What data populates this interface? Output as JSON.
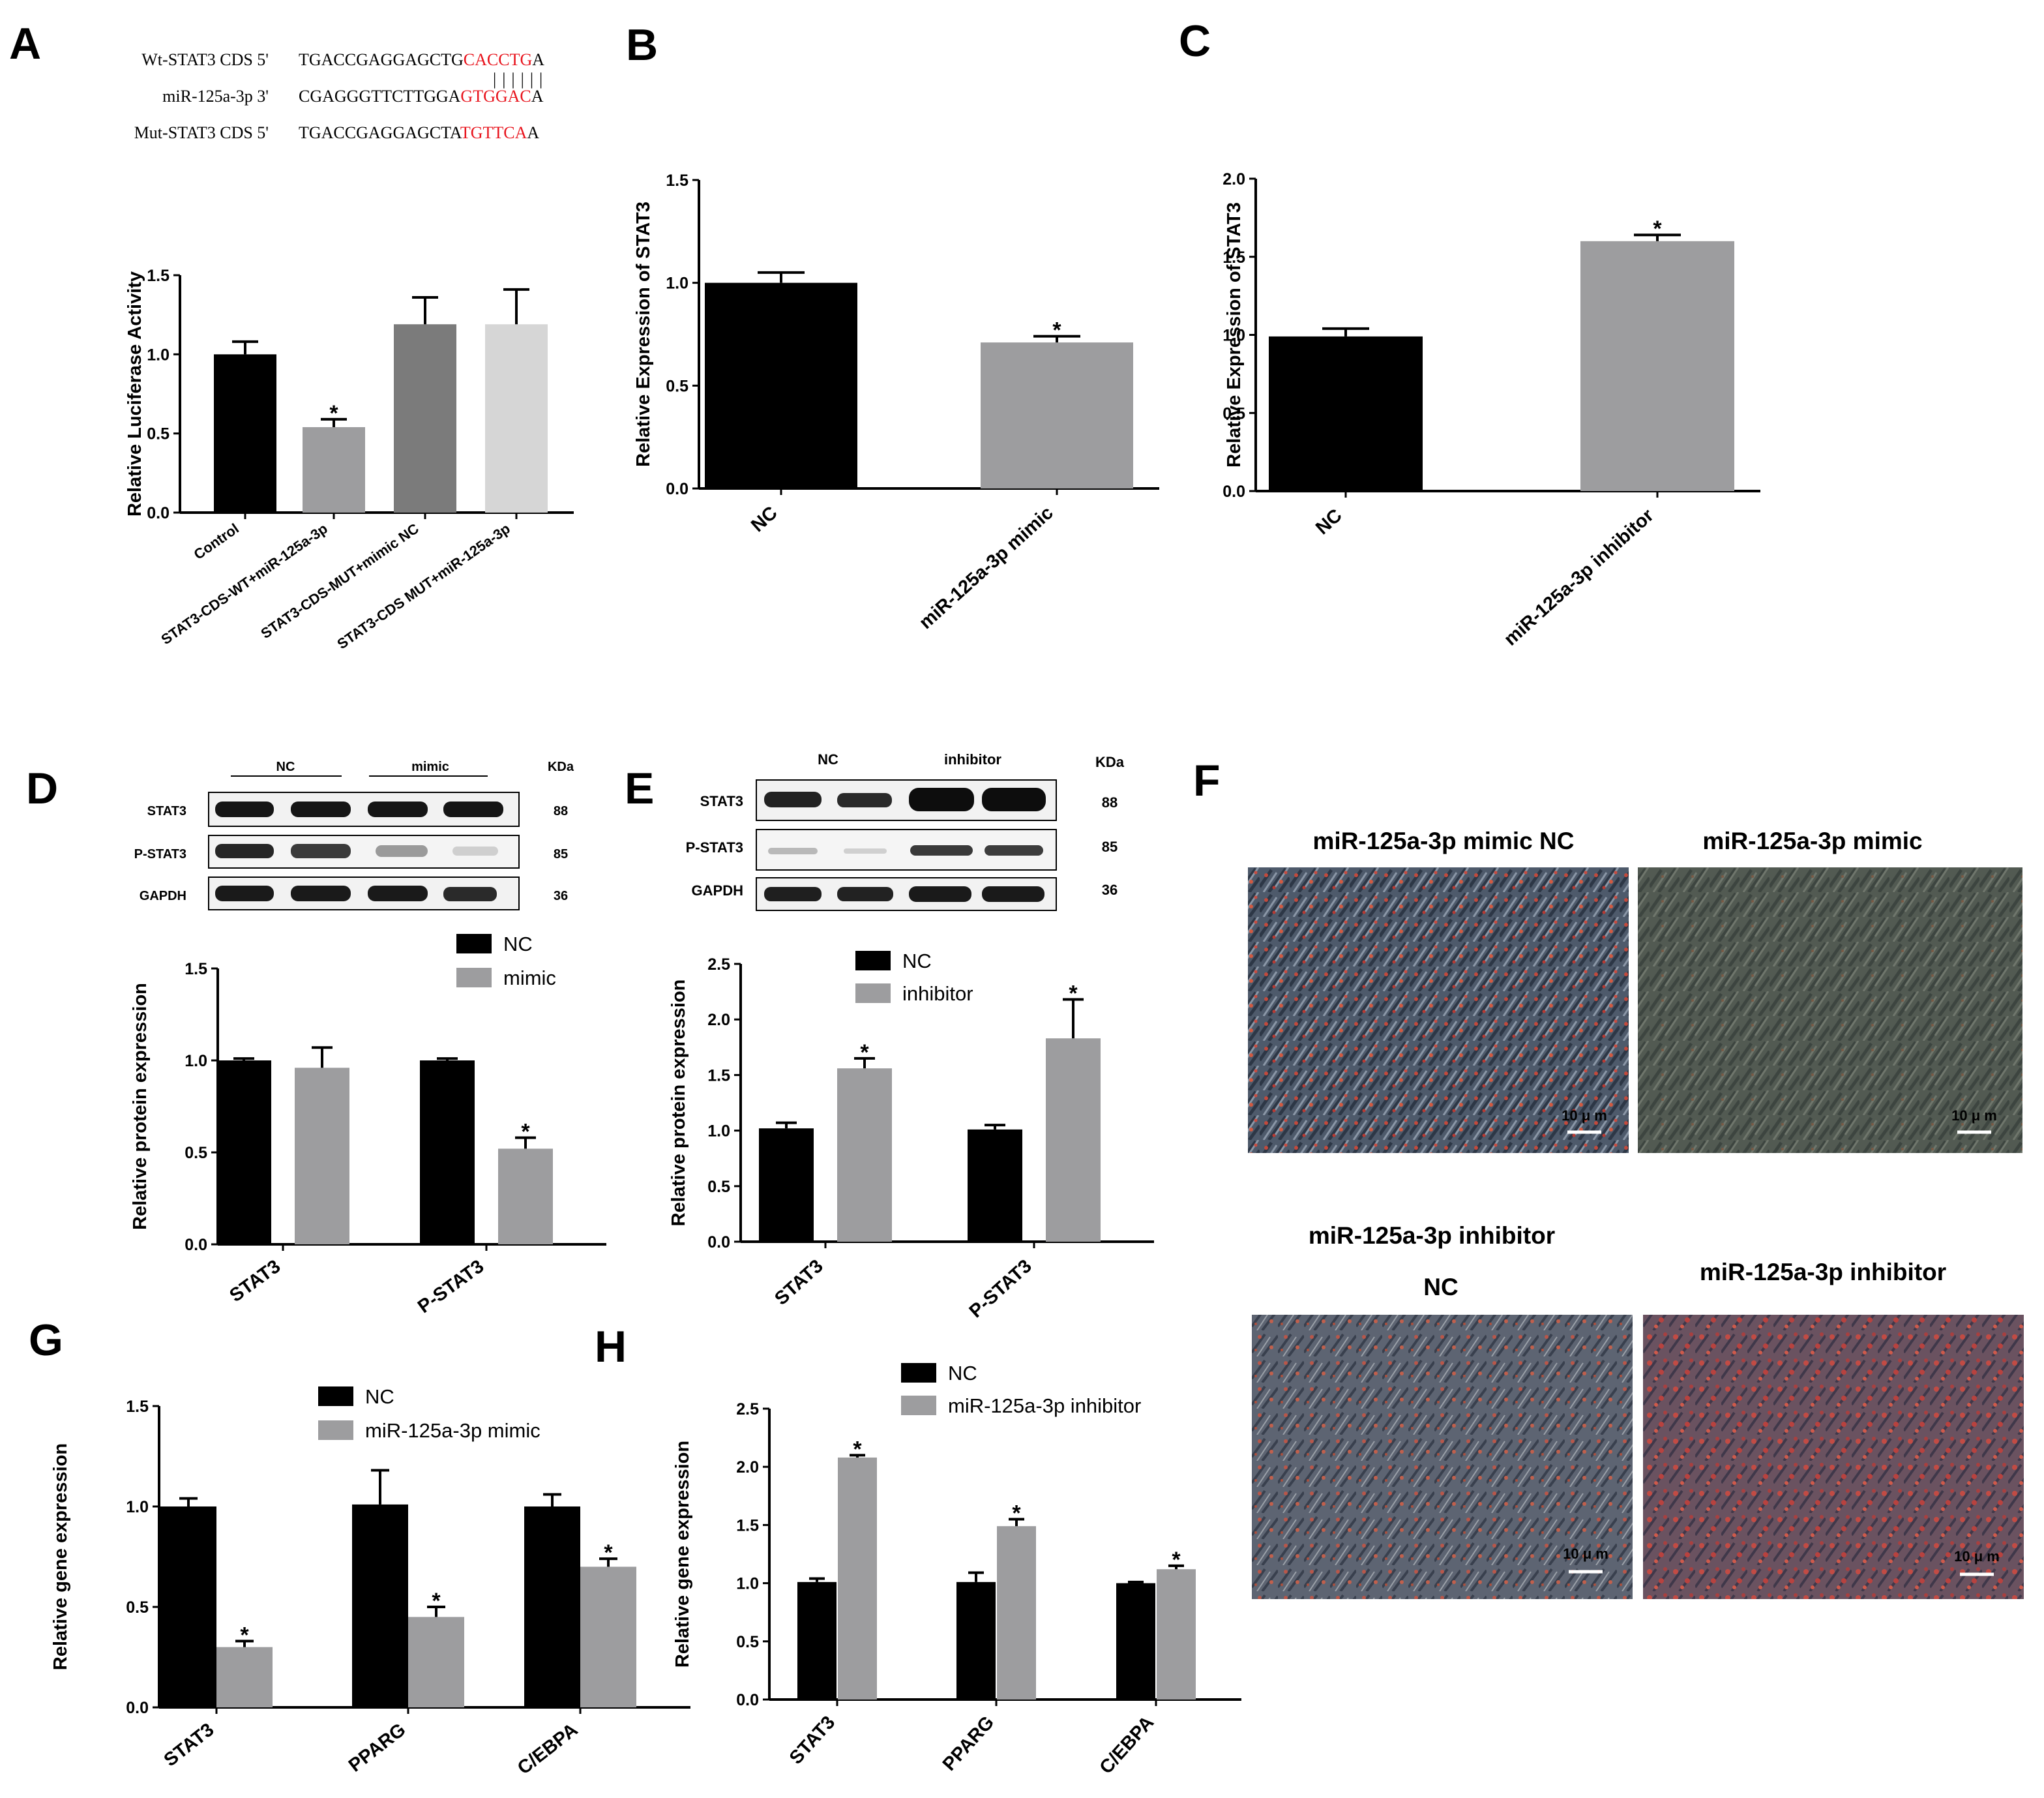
{
  "panel_letters": [
    "A",
    "B",
    "C",
    "D",
    "E",
    "F",
    "G",
    "H"
  ],
  "sequences": {
    "wt": {
      "label": "Wt-STAT3 CDS  5'",
      "prefix": "TGACCGAGGAGCTG",
      "highlight": "CACCTG",
      "suffix": "A"
    },
    "mir": {
      "label": "miR-125a-3p  3'",
      "prefix": "CGAGGGTTCTTGGA",
      "highlight": "GTGGAC",
      "suffix": "A"
    },
    "mut": {
      "label": "Mut-STAT3 CDS  5'",
      "prefix": "TGACCGAGGAGCTA",
      "highlight": "TGTTCA",
      "suffix": "A"
    },
    "pairing": "||||||",
    "highlight_color": "#e8141d"
  },
  "western_D": {
    "groups": [
      "NC",
      "mimic"
    ],
    "unit": "KDa",
    "rows": [
      {
        "label": "STAT3",
        "kda": "88"
      },
      {
        "label": "P-STAT3",
        "kda": "85"
      },
      {
        "label": "GAPDH",
        "kda": "36"
      }
    ]
  },
  "western_E": {
    "groups": [
      "NC",
      "inhibitor"
    ],
    "unit": "KDa",
    "rows": [
      {
        "label": "STAT3",
        "kda": "88"
      },
      {
        "label": "P-STAT3",
        "kda": "85"
      },
      {
        "label": "GAPDH",
        "kda": "36"
      }
    ]
  },
  "micrographs": {
    "titles": [
      "miR-125a-3p  mimic  NC",
      "miR-125a-3p  mimic",
      "miR-125a-3p  inhibitor",
      "NC",
      "miR-125a-3p  inhibitor"
    ],
    "scale_bar": "10 μ m"
  },
  "colors": {
    "black": "#000000",
    "gray": "#9d9d9f",
    "darkgray": "#7b7b7b",
    "lightgray": "#d6d6d6",
    "red": "#e8141d"
  },
  "chart_data": [
    {
      "panel": "A",
      "type": "bar",
      "title": "",
      "ylabel": "Relative Luciferase Activity",
      "xlabel": "",
      "ylim": [
        0,
        1.5
      ],
      "yticks": [
        "0.0",
        "0.5",
        "1.0",
        "1.5"
      ],
      "categories": [
        "Control",
        "STAT3-CDS-WT+miR-125a-3p",
        "STAT3-CDS-MUT+mimic NC",
        "STAT3-CDS MUT+miR-125a-3p"
      ],
      "values": [
        1.0,
        0.54,
        1.19,
        1.19
      ],
      "errors": [
        0.08,
        0.05,
        0.17,
        0.22
      ],
      "significant": [
        false,
        true,
        false,
        false
      ],
      "bar_colors": [
        "#000000",
        "#9d9d9f",
        "#7b7b7b",
        "#d6d6d6"
      ]
    },
    {
      "panel": "B",
      "type": "bar",
      "title": "",
      "ylabel": "Relative Expression of STAT3",
      "xlabel": "",
      "ylim": [
        0,
        1.5
      ],
      "yticks": [
        "0.0",
        "0.5",
        "1.0",
        "1.5"
      ],
      "categories": [
        "NC",
        "miR-125a-3p mimic"
      ],
      "values": [
        1.0,
        0.71
      ],
      "errors": [
        0.05,
        0.03
      ],
      "significant": [
        false,
        true
      ],
      "bar_colors": [
        "#000000",
        "#9d9d9f"
      ]
    },
    {
      "panel": "C",
      "type": "bar",
      "title": "",
      "ylabel": "Relative Expression of STAT3",
      "xlabel": "",
      "ylim": [
        0,
        2.0
      ],
      "yticks": [
        "0.0",
        "0.5",
        "1.0",
        "1.5",
        "2.0"
      ],
      "categories": [
        "NC",
        "miR-125a-3p inhibitor"
      ],
      "values": [
        0.99,
        1.6
      ],
      "errors": [
        0.05,
        0.04
      ],
      "significant": [
        false,
        true
      ],
      "bar_colors": [
        "#000000",
        "#9d9d9f"
      ]
    },
    {
      "panel": "D",
      "type": "bar",
      "title": "",
      "ylabel": "Relative protein expression",
      "xlabel": "",
      "ylim": [
        0,
        1.5
      ],
      "yticks": [
        "0.0",
        "0.5",
        "1.0",
        "1.5"
      ],
      "categories": [
        "STAT3",
        "P-STAT3"
      ],
      "series": [
        {
          "name": "NC",
          "values": [
            1.0,
            1.0
          ],
          "errors": [
            0.01,
            0.01
          ],
          "significant": [
            false,
            false
          ],
          "color": "#000000"
        },
        {
          "name": "mimic",
          "values": [
            0.96,
            0.52
          ],
          "errors": [
            0.11,
            0.06
          ],
          "significant": [
            false,
            true
          ],
          "color": "#9d9d9f"
        }
      ],
      "legend": "top"
    },
    {
      "panel": "E",
      "type": "bar",
      "title": "",
      "ylabel": "Relative protein expression",
      "xlabel": "",
      "ylim": [
        0,
        2.5
      ],
      "yticks": [
        "0.0",
        "0.5",
        "1.0",
        "1.5",
        "2.0",
        "2.5"
      ],
      "categories": [
        "STAT3",
        "P-STAT3"
      ],
      "series": [
        {
          "name": "NC",
          "values": [
            1.02,
            1.01
          ],
          "errors": [
            0.05,
            0.04
          ],
          "significant": [
            false,
            false
          ],
          "color": "#000000"
        },
        {
          "name": "inhibitor",
          "values": [
            1.56,
            1.83
          ],
          "errors": [
            0.09,
            0.35
          ],
          "significant": [
            true,
            true
          ],
          "color": "#9d9d9f"
        }
      ],
      "legend": "top"
    },
    {
      "panel": "G",
      "type": "bar",
      "title": "",
      "ylabel": "Relative gene expression",
      "xlabel": "",
      "ylim": [
        0,
        1.5
      ],
      "yticks": [
        "0.0",
        "0.5",
        "1.0",
        "1.5"
      ],
      "categories": [
        "STAT3",
        "PPARG",
        "C/EBPA"
      ],
      "series": [
        {
          "name": "NC",
          "values": [
            1.0,
            1.01,
            1.0
          ],
          "errors": [
            0.04,
            0.17,
            0.06
          ],
          "significant": [
            false,
            false,
            false
          ],
          "color": "#000000"
        },
        {
          "name": "miR-125a-3p mimic",
          "values": [
            0.3,
            0.45,
            0.7
          ],
          "errors": [
            0.03,
            0.05,
            0.04
          ],
          "significant": [
            true,
            true,
            true
          ],
          "color": "#9d9d9f"
        }
      ],
      "legend": "top"
    },
    {
      "panel": "H",
      "type": "bar",
      "title": "",
      "ylabel": "Relative gene expression",
      "xlabel": "",
      "ylim": [
        0,
        2.5
      ],
      "yticks": [
        "0.0",
        "0.5",
        "1.0",
        "1.5",
        "2.0",
        "2.5"
      ],
      "categories": [
        "STAT3",
        "PPARG",
        "C/EBPA"
      ],
      "series": [
        {
          "name": "NC",
          "values": [
            1.01,
            1.01,
            1.0
          ],
          "errors": [
            0.03,
            0.08,
            0.01
          ],
          "significant": [
            false,
            false,
            false
          ],
          "color": "#000000"
        },
        {
          "name": "miR-125a-3p inhibitor",
          "values": [
            2.08,
            1.49,
            1.12
          ],
          "errors": [
            0.02,
            0.06,
            0.03
          ],
          "significant": [
            true,
            true,
            true
          ],
          "color": "#9d9d9f"
        }
      ],
      "legend": "top"
    }
  ]
}
